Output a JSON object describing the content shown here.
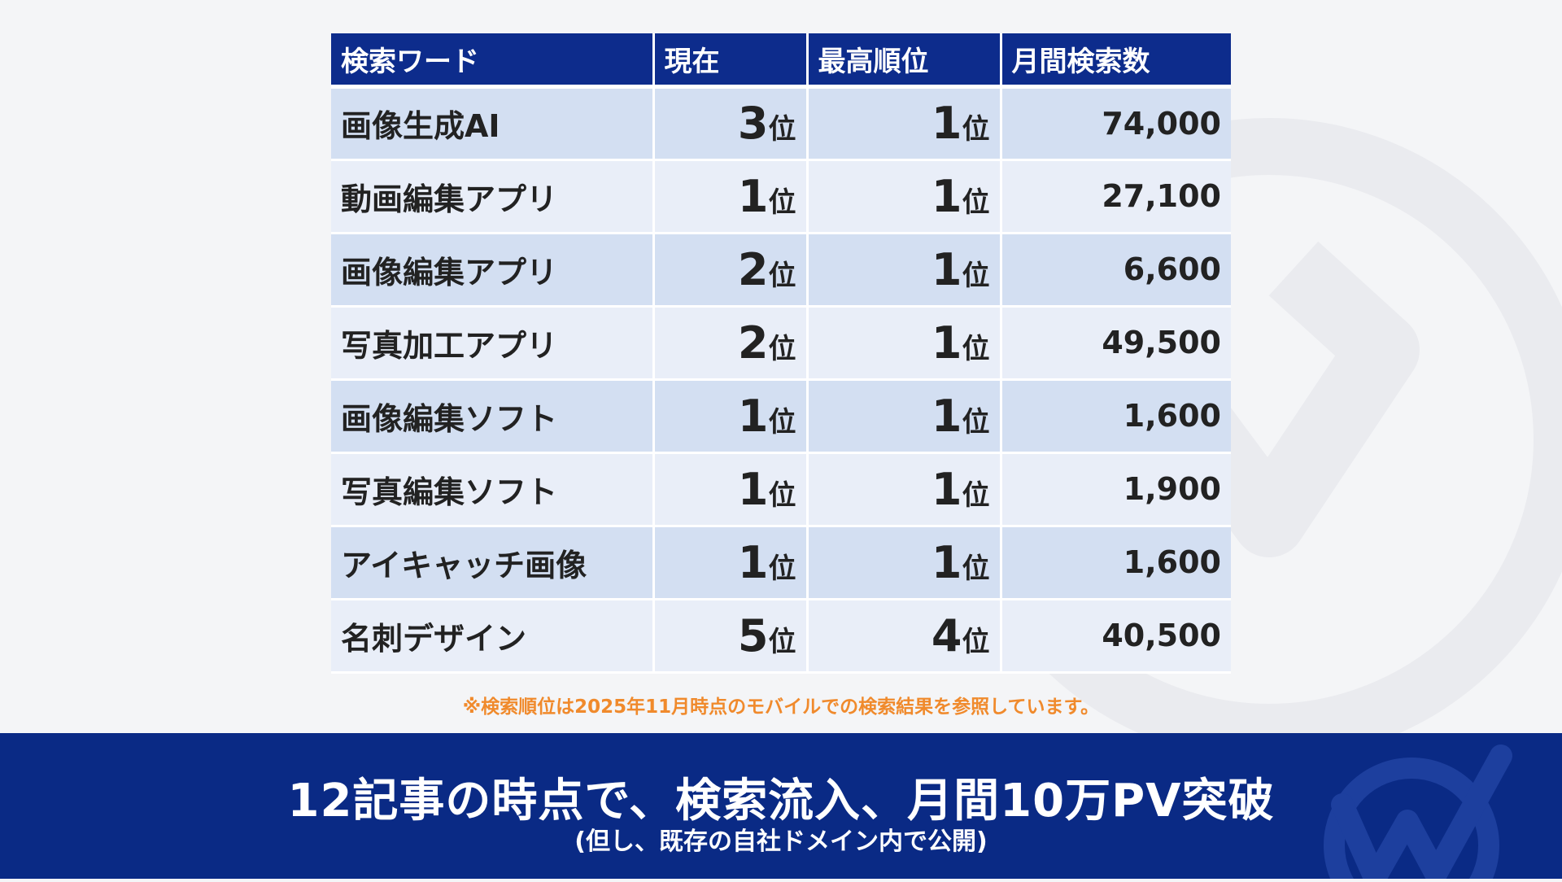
{
  "colors": {
    "header_bg": "#0d2c8c",
    "row_odd": "#d3dff2",
    "row_even": "#e9eef8",
    "note": "#f08a2c",
    "footer_bg": "#0a2a85"
  },
  "table": {
    "headers": [
      "検索ワード",
      "現在",
      "最高順位",
      "月間検索数"
    ],
    "rank_suffix": "位",
    "rows": [
      {
        "keyword": "画像生成AI",
        "current": "3",
        "best": "1",
        "volume": "74,000"
      },
      {
        "keyword": "動画編集アプリ",
        "current": "1",
        "best": "1",
        "volume": "27,100"
      },
      {
        "keyword": "画像編集アプリ",
        "current": "2",
        "best": "1",
        "volume": "6,600"
      },
      {
        "keyword": "写真加工アプリ",
        "current": "2",
        "best": "1",
        "volume": "49,500"
      },
      {
        "keyword": "画像編集ソフト",
        "current": "1",
        "best": "1",
        "volume": "1,600"
      },
      {
        "keyword": "写真編集ソフト",
        "current": "1",
        "best": "1",
        "volume": "1,900"
      },
      {
        "keyword": "アイキャッチ画像",
        "current": "1",
        "best": "1",
        "volume": "1,600"
      },
      {
        "keyword": "名刺デザイン",
        "current": "5",
        "best": "4",
        "volume": "40,500"
      }
    ]
  },
  "note": "※検索順位は2025年11月時点のモバイルでの検索結果を参照しています。",
  "footer": {
    "headline": "12記事の時点で、検索流入、月間10万PV突破",
    "subline": "(但し、既存の自社ドメイン内で公開)"
  },
  "icons": {
    "background_logo": "check-w-logo-icon",
    "footer_logo": "check-w-logo-icon"
  }
}
